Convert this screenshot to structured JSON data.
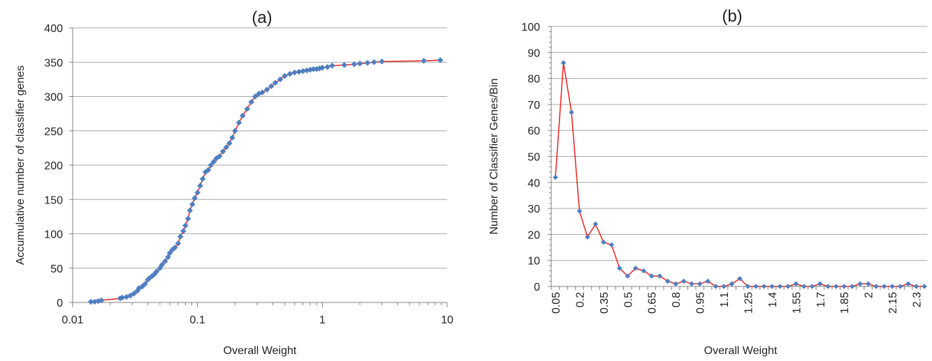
{
  "colors": {
    "line": "#e8201d",
    "marker": "#4f7fc1",
    "grid": "#a6a6a6",
    "axis": "#808080",
    "text": "#222222"
  },
  "chart_data": [
    {
      "type": "line",
      "panel_label": "(a)",
      "xlabel": "Overall Weight",
      "ylabel": "Accumulative number of classifier genes",
      "xscale": "log",
      "xlim": [
        0.01,
        10
      ],
      "ylim": [
        0,
        400
      ],
      "x_ticks": [
        "0.01",
        "0.1",
        "1",
        "10"
      ],
      "y_ticks": [
        "0",
        "50",
        "100",
        "150",
        "200",
        "250",
        "300",
        "350",
        "400"
      ],
      "grid": "horizontal",
      "series": [
        {
          "x": [
            0.014,
            0.015,
            0.016,
            0.017,
            0.024,
            0.025,
            0.027,
            0.029,
            0.031,
            0.033,
            0.034,
            0.036,
            0.038,
            0.04,
            0.041,
            0.043,
            0.045,
            0.047,
            0.05,
            0.052,
            0.055,
            0.058,
            0.06,
            0.063,
            0.066,
            0.07,
            0.073,
            0.077,
            0.08,
            0.084,
            0.087,
            0.091,
            0.095,
            0.1,
            0.105,
            0.11,
            0.116,
            0.122,
            0.128,
            0.135,
            0.142,
            0.15,
            0.16,
            0.17,
            0.18,
            0.19,
            0.2,
            0.215,
            0.23,
            0.25,
            0.27,
            0.29,
            0.31,
            0.33,
            0.36,
            0.39,
            0.42,
            0.46,
            0.5,
            0.55,
            0.6,
            0.65,
            0.7,
            0.75,
            0.8,
            0.85,
            0.9,
            0.95,
            1.0,
            1.1,
            1.2,
            1.5,
            1.8,
            2.0,
            2.3,
            2.6,
            3.0,
            6.5,
            8.8
          ],
          "y": [
            1,
            1,
            2,
            3,
            6,
            7,
            8,
            10,
            13,
            17,
            21,
            23,
            27,
            33,
            35,
            38,
            41,
            45,
            50,
            55,
            60,
            66,
            72,
            77,
            80,
            86,
            96,
            104,
            112,
            122,
            134,
            143,
            152,
            160,
            170,
            180,
            190,
            193,
            200,
            205,
            210,
            213,
            220,
            226,
            232,
            240,
            250,
            262,
            272,
            282,
            292,
            300,
            304,
            306,
            310,
            315,
            320,
            325,
            330,
            333,
            335,
            336,
            337,
            338,
            339,
            340,
            340,
            341,
            342,
            343,
            345,
            346,
            347,
            348,
            349,
            350,
            351,
            352,
            353
          ]
        }
      ]
    },
    {
      "type": "line",
      "panel_label": "(b)",
      "xlabel": "Overall Weight",
      "ylabel": "Number of Classifier Genes/Bin",
      "ylim": [
        0,
        100
      ],
      "y_ticks": [
        "0",
        "10",
        "20",
        "30",
        "40",
        "50",
        "60",
        "70",
        "80",
        "90",
        "100"
      ],
      "x_tick_labels": [
        "0.05",
        "0.2",
        "0.35",
        "0.5",
        "0.65",
        "0.8",
        "0.95",
        "1.1",
        "1.25",
        "1.4",
        "1.55",
        "1.7",
        "1.85",
        "2",
        "2.15",
        "2.3"
      ],
      "grid": "horizontal",
      "series": [
        {
          "x": [
            0.05,
            0.1,
            0.15,
            0.2,
            0.25,
            0.3,
            0.35,
            0.4,
            0.45,
            0.5,
            0.55,
            0.6,
            0.65,
            0.7,
            0.75,
            0.8,
            0.85,
            0.9,
            0.95,
            1.0,
            1.05,
            1.1,
            1.15,
            1.2,
            1.25,
            1.3,
            1.35,
            1.4,
            1.45,
            1.5,
            1.55,
            1.6,
            1.65,
            1.7,
            1.75,
            1.8,
            1.85,
            1.9,
            1.95,
            2.0,
            2.05,
            2.1,
            2.15,
            2.2,
            2.25,
            2.3,
            2.35
          ],
          "values": [
            42,
            86,
            67,
            29,
            19,
            24,
            17,
            16,
            7,
            4,
            7,
            6,
            4,
            4,
            2,
            1,
            2,
            1,
            1,
            2,
            0,
            0,
            1,
            3,
            0,
            0,
            0,
            0,
            0,
            0,
            1,
            0,
            0,
            1,
            0,
            0,
            0,
            0,
            1,
            1,
            0,
            0,
            0,
            0,
            1,
            0,
            0
          ]
        }
      ]
    }
  ]
}
